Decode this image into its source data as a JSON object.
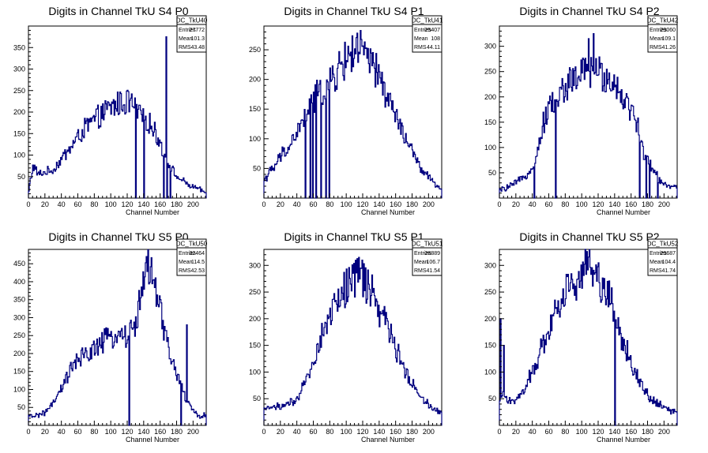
{
  "chart_data": [
    {
      "type": "histogram",
      "title": "Digits in Channel TkU S4 P0",
      "xlabel": "Channel Number",
      "ylabel": "",
      "xlim": [
        0,
        216
      ],
      "ylim": [
        0,
        400
      ],
      "xticks": [
        0,
        20,
        40,
        60,
        80,
        100,
        120,
        140,
        160,
        180,
        200
      ],
      "yticks": [
        50,
        100,
        150,
        200,
        250,
        300,
        350
      ],
      "color": "#00007f",
      "stats": {
        "name": "DC_TkU40",
        "entries": "27772",
        "mean": "101.3",
        "rms": "43.48"
      },
      "bin_width": 1,
      "profile": [
        [
          0,
          10
        ],
        [
          2,
          40
        ],
        [
          6,
          75
        ],
        [
          12,
          55
        ],
        [
          20,
          60
        ],
        [
          30,
          65
        ],
        [
          40,
          90
        ],
        [
          50,
          115
        ],
        [
          60,
          140
        ],
        [
          70,
          165
        ],
        [
          80,
          180
        ],
        [
          90,
          195
        ],
        [
          100,
          210
        ],
        [
          110,
          220
        ],
        [
          120,
          225
        ],
        [
          128,
          215
        ],
        [
          135,
          195
        ],
        [
          145,
          180
        ],
        [
          155,
          150
        ],
        [
          162,
          120
        ],
        [
          170,
          80
        ],
        [
          180,
          50
        ],
        [
          195,
          30
        ],
        [
          210,
          18
        ],
        [
          216,
          12
        ]
      ],
      "spikes": [
        [
          130,
          0
        ],
        [
          140,
          0
        ],
        [
          164,
          0
        ],
        [
          167,
          375
        ],
        [
          168,
          0
        ],
        [
          172,
          0
        ]
      ]
    },
    {
      "type": "histogram",
      "title": "Digits in Channel TkU S4 P1",
      "xlabel": "Channel Number",
      "ylabel": "",
      "xlim": [
        0,
        216
      ],
      "ylim": [
        0,
        290
      ],
      "xticks": [
        0,
        20,
        40,
        60,
        80,
        100,
        120,
        140,
        160,
        180,
        200
      ],
      "yticks": [
        50,
        100,
        150,
        200,
        250
      ],
      "color": "#00007f",
      "stats": {
        "name": "DC_TkU41",
        "entries": "25407",
        "mean": "108",
        "rms": "44.11"
      },
      "bin_width": 1,
      "profile": [
        [
          0,
          30
        ],
        [
          5,
          40
        ],
        [
          12,
          50
        ],
        [
          20,
          70
        ],
        [
          30,
          85
        ],
        [
          40,
          110
        ],
        [
          50,
          135
        ],
        [
          60,
          165
        ],
        [
          70,
          180
        ],
        [
          80,
          190
        ],
        [
          90,
          215
        ],
        [
          100,
          235
        ],
        [
          110,
          250
        ],
        [
          120,
          245
        ],
        [
          130,
          225
        ],
        [
          140,
          205
        ],
        [
          150,
          170
        ],
        [
          160,
          140
        ],
        [
          170,
          105
        ],
        [
          180,
          80
        ],
        [
          190,
          50
        ],
        [
          200,
          35
        ],
        [
          210,
          20
        ],
        [
          216,
          15
        ]
      ],
      "spikes": [
        [
          50,
          0
        ],
        [
          56,
          0
        ],
        [
          59,
          0
        ],
        [
          63,
          0
        ],
        [
          69,
          0
        ],
        [
          75,
          0
        ],
        [
          79,
          0
        ],
        [
          113,
          278
        ]
      ]
    },
    {
      "type": "histogram",
      "title": "Digits in Channel TkU S4 P2",
      "xlabel": "Channel Number",
      "ylabel": "",
      "xlim": [
        0,
        216
      ],
      "ylim": [
        0,
        340
      ],
      "xticks": [
        0,
        20,
        40,
        60,
        80,
        100,
        120,
        140,
        160,
        180,
        200
      ],
      "yticks": [
        50,
        100,
        150,
        200,
        250,
        300
      ],
      "color": "#00007f",
      "stats": {
        "name": "DC_TkU42",
        "entries": "29060",
        "mean": "109.1",
        "rms": "41.26"
      },
      "bin_width": 1,
      "profile": [
        [
          0,
          15
        ],
        [
          8,
          20
        ],
        [
          15,
          25
        ],
        [
          25,
          35
        ],
        [
          35,
          50
        ],
        [
          45,
          80
        ],
        [
          52,
          140
        ],
        [
          60,
          180
        ],
        [
          70,
          195
        ],
        [
          80,
          220
        ],
        [
          90,
          235
        ],
        [
          100,
          245
        ],
        [
          110,
          250
        ],
        [
          120,
          248
        ],
        [
          130,
          240
        ],
        [
          140,
          225
        ],
        [
          150,
          205
        ],
        [
          160,
          170
        ],
        [
          168,
          150
        ],
        [
          175,
          90
        ],
        [
          185,
          60
        ],
        [
          195,
          35
        ],
        [
          205,
          25
        ],
        [
          216,
          20
        ]
      ],
      "spikes": [
        [
          42,
          0
        ],
        [
          68,
          0
        ],
        [
          108,
          315
        ],
        [
          114,
          325
        ],
        [
          170,
          0
        ],
        [
          178,
          0
        ],
        [
          182,
          0
        ],
        [
          192,
          0
        ]
      ]
    },
    {
      "type": "histogram",
      "title": "Digits in Channel TkU S5 P0",
      "xlabel": "Channel Number",
      "ylabel": "",
      "xlim": [
        0,
        216
      ],
      "ylim": [
        0,
        490
      ],
      "xticks": [
        0,
        20,
        40,
        60,
        80,
        100,
        120,
        140,
        160,
        180,
        200
      ],
      "yticks": [
        50,
        100,
        150,
        200,
        250,
        300,
        350,
        400,
        450
      ],
      "color": "#00007f",
      "stats": {
        "name": "DC_TkU50",
        "entries": "32464",
        "mean": "114.5",
        "rms": "42.53"
      },
      "bin_width": 1,
      "profile": [
        [
          0,
          25
        ],
        [
          10,
          28
        ],
        [
          20,
          35
        ],
        [
          30,
          60
        ],
        [
          40,
          100
        ],
        [
          50,
          150
        ],
        [
          60,
          180
        ],
        [
          70,
          195
        ],
        [
          80,
          215
        ],
        [
          90,
          230
        ],
        [
          100,
          245
        ],
        [
          110,
          255
        ],
        [
          120,
          250
        ],
        [
          128,
          265
        ],
        [
          134,
          330
        ],
        [
          140,
          410
        ],
        [
          146,
          430
        ],
        [
          152,
          400
        ],
        [
          158,
          340
        ],
        [
          165,
          260
        ],
        [
          172,
          200
        ],
        [
          180,
          140
        ],
        [
          186,
          110
        ],
        [
          192,
          70
        ],
        [
          200,
          40
        ],
        [
          208,
          25
        ],
        [
          216,
          30
        ]
      ],
      "spikes": [
        [
          122,
          0
        ],
        [
          143,
          470
        ],
        [
          185,
          0
        ],
        [
          192,
          280
        ]
      ]
    },
    {
      "type": "histogram",
      "title": "Digits in Channel TkU S5 P1",
      "xlabel": "Channel Number",
      "ylabel": "",
      "xlim": [
        0,
        216
      ],
      "ylim": [
        0,
        330
      ],
      "xticks": [
        0,
        20,
        40,
        60,
        80,
        100,
        120,
        140,
        160,
        180,
        200
      ],
      "yticks": [
        50,
        100,
        150,
        200,
        250,
        300
      ],
      "color": "#00007f",
      "stats": {
        "name": "DC_TkU51",
        "entries": "28889",
        "mean": "106.7",
        "rms": "41.54"
      },
      "bin_width": 1,
      "profile": [
        [
          0,
          30
        ],
        [
          10,
          35
        ],
        [
          20,
          35
        ],
        [
          30,
          40
        ],
        [
          40,
          45
        ],
        [
          50,
          80
        ],
        [
          60,
          120
        ],
        [
          70,
          165
        ],
        [
          80,
          205
        ],
        [
          90,
          235
        ],
        [
          100,
          260
        ],
        [
          110,
          280
        ],
        [
          120,
          275
        ],
        [
          130,
          250
        ],
        [
          140,
          220
        ],
        [
          150,
          185
        ],
        [
          160,
          145
        ],
        [
          170,
          110
        ],
        [
          180,
          80
        ],
        [
          190,
          55
        ],
        [
          200,
          40
        ],
        [
          210,
          28
        ],
        [
          216,
          25
        ]
      ],
      "spikes": [
        [
          115,
          315
        ]
      ]
    },
    {
      "type": "histogram",
      "title": "Digits in Channel TkU S5 P2",
      "xlabel": "Channel Number",
      "ylabel": "",
      "xlim": [
        0,
        216
      ],
      "ylim": [
        0,
        330
      ],
      "xticks": [
        0,
        20,
        40,
        60,
        80,
        100,
        120,
        140,
        160,
        180,
        200
      ],
      "yticks": [
        50,
        100,
        150,
        200,
        250,
        300
      ],
      "color": "#00007f",
      "stats": {
        "name": "DC_TkU52",
        "entries": "29687",
        "mean": "104.4",
        "rms": "41.74"
      },
      "bin_width": 1,
      "profile": [
        [
          0,
          40
        ],
        [
          3,
          60
        ],
        [
          10,
          45
        ],
        [
          20,
          50
        ],
        [
          30,
          65
        ],
        [
          40,
          100
        ],
        [
          50,
          140
        ],
        [
          60,
          180
        ],
        [
          70,
          220
        ],
        [
          80,
          250
        ],
        [
          90,
          270
        ],
        [
          100,
          285
        ],
        [
          110,
          295
        ],
        [
          120,
          280
        ],
        [
          130,
          250
        ],
        [
          135,
          240
        ],
        [
          145,
          180
        ],
        [
          155,
          140
        ],
        [
          165,
          100
        ],
        [
          175,
          65
        ],
        [
          185,
          50
        ],
        [
          195,
          40
        ],
        [
          205,
          30
        ],
        [
          216,
          25
        ]
      ],
      "spikes": [
        [
          1,
          200
        ],
        [
          5,
          150
        ],
        [
          140,
          0
        ]
      ]
    }
  ]
}
